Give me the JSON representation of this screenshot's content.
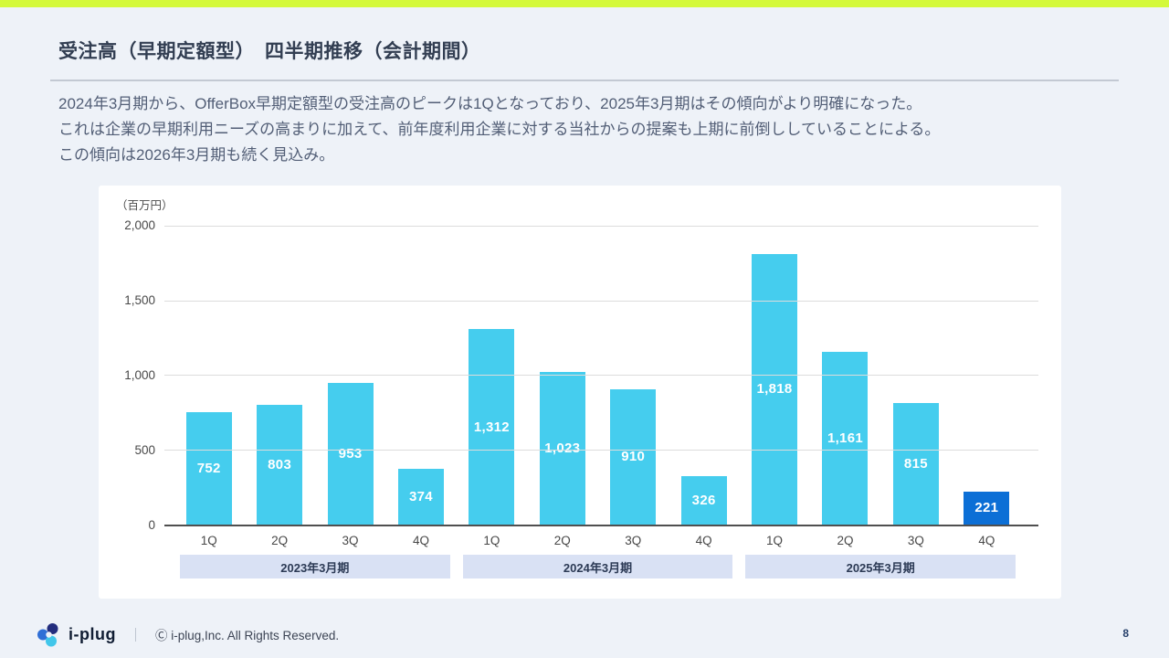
{
  "colors": {
    "accent_bar": "#d4f93a",
    "bar_blue": "#45cdee",
    "highlight_blue": "#0c6fd6",
    "band_bg": "#d9e1f4"
  },
  "header": {
    "title": "受注高（早期定額型）　四半期推移（会計期間）"
  },
  "description": {
    "lines": [
      "2024年3月期から、OfferBox早期定額型の受注高のピークは1Qとなっており、2025年3月期はその傾向がより明確になった。",
      "これは企業の早期利用ニーズの高まりに加えて、前年度利用企業に対する当社からの提案も上期に前倒ししていることによる。",
      "この傾向は2026年3月期も続く見込み。"
    ]
  },
  "chart_data": {
    "type": "bar",
    "title": "受注高（早期定額型） 四半期推移（会計期間）",
    "unit_label": "（百万円）",
    "ylabel": "百万円",
    "ylim": [
      0,
      2000
    ],
    "yticks": [
      0,
      500,
      1000,
      1500,
      2000
    ],
    "ytick_labels": [
      "0",
      "500",
      "1,000",
      "1,500",
      "2,000"
    ],
    "grid": true,
    "legend": "none",
    "categories": [
      "1Q",
      "2Q",
      "3Q",
      "4Q"
    ],
    "groups": [
      {
        "label": "2023年3月期",
        "values": [
          752,
          803,
          953,
          374
        ],
        "value_labels": [
          "752",
          "803",
          "953",
          "374"
        ],
        "highlight": [
          false,
          false,
          false,
          false
        ]
      },
      {
        "label": "2024年3月期",
        "values": [
          1312,
          1023,
          910,
          326
        ],
        "value_labels": [
          "1,312",
          "1,023",
          "910",
          "326"
        ],
        "highlight": [
          false,
          false,
          false,
          false
        ]
      },
      {
        "label": "2025年3月期",
        "values": [
          1818,
          1161,
          815,
          221
        ],
        "value_labels": [
          "1,818",
          "1,161",
          "815",
          "221"
        ],
        "highlight": [
          false,
          false,
          false,
          true
        ]
      }
    ]
  },
  "footer": {
    "brand": "i-plug",
    "separator": "｜",
    "copyright": "Ⓒ i-plug,Inc. All Rights Reserved.",
    "page_number": "8"
  }
}
